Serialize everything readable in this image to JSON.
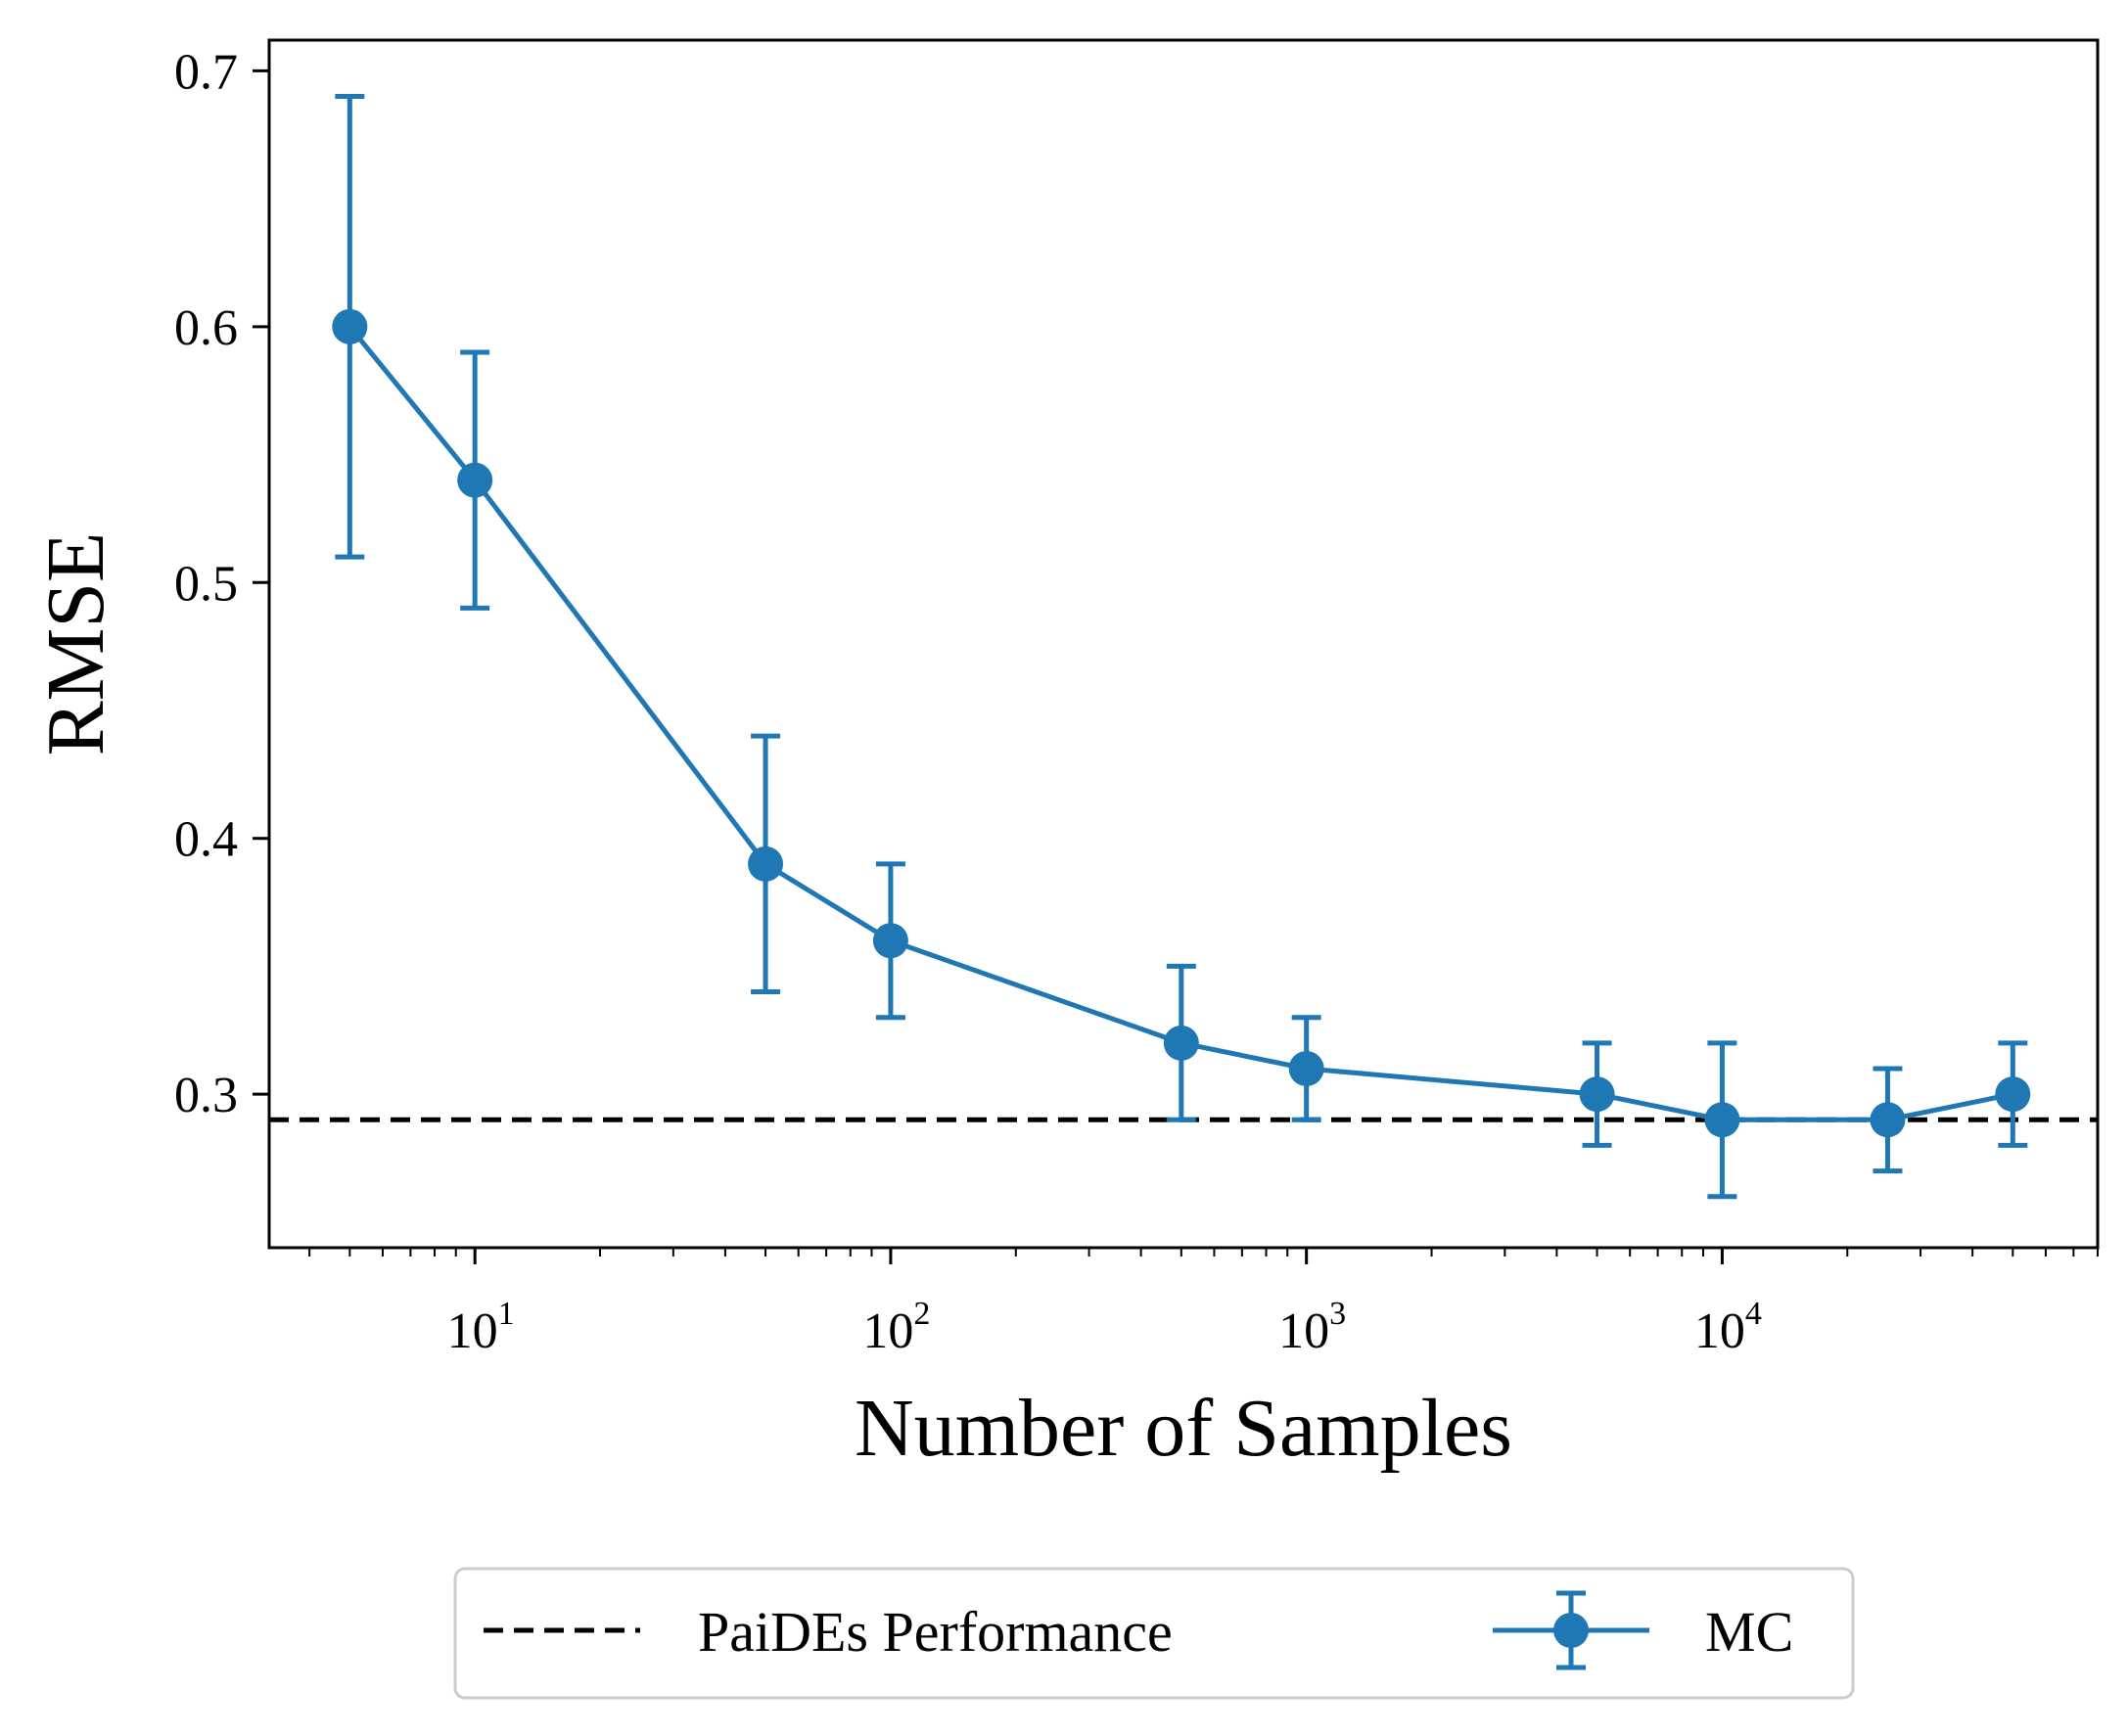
{
  "chart_data": {
    "type": "line",
    "title": "",
    "xlabel": "Number of Samples",
    "ylabel": "RMSE",
    "xscale": "log",
    "xlim": [
      3.2,
      80000
    ],
    "ylim": [
      0.24,
      0.712
    ],
    "grid": false,
    "x_ticks": [
      {
        "value": 10,
        "base": "10",
        "exp": "1"
      },
      {
        "value": 100,
        "base": "10",
        "exp": "2"
      },
      {
        "value": 1000,
        "base": "10",
        "exp": "3"
      },
      {
        "value": 10000,
        "base": "10",
        "exp": "4"
      }
    ],
    "y_ticks": [
      {
        "value": 0.3,
        "label": "0.3"
      },
      {
        "value": 0.4,
        "label": "0.4"
      },
      {
        "value": 0.5,
        "label": "0.5"
      },
      {
        "value": 0.6,
        "label": "0.6"
      },
      {
        "value": 0.7,
        "label": "0.7"
      }
    ],
    "series": [
      {
        "name": "MC",
        "color": "#1f77b4",
        "x": [
          5,
          10,
          50,
          100,
          500,
          1000,
          5000,
          10000,
          25000,
          50000
        ],
        "y": [
          0.6,
          0.54,
          0.39,
          0.36,
          0.32,
          0.31,
          0.3,
          0.29,
          0.29,
          0.3
        ],
        "yerr_lower": [
          0.51,
          0.49,
          0.34,
          0.33,
          0.29,
          0.29,
          0.28,
          0.26,
          0.27,
          0.28
        ],
        "yerr_upper": [
          0.69,
          0.59,
          0.44,
          0.39,
          0.35,
          0.33,
          0.32,
          0.32,
          0.31,
          0.32
        ]
      }
    ],
    "reference_lines": [
      {
        "name": "PaiDEs Performance",
        "y": 0.29,
        "style": "dashed",
        "color": "#000000"
      }
    ],
    "legend": {
      "placement": "bottom-center-outside",
      "entries": [
        {
          "label": "PaiDEs Performance",
          "kind": "dashed-line"
        },
        {
          "label": "MC",
          "kind": "errorbar-marker"
        }
      ]
    }
  }
}
